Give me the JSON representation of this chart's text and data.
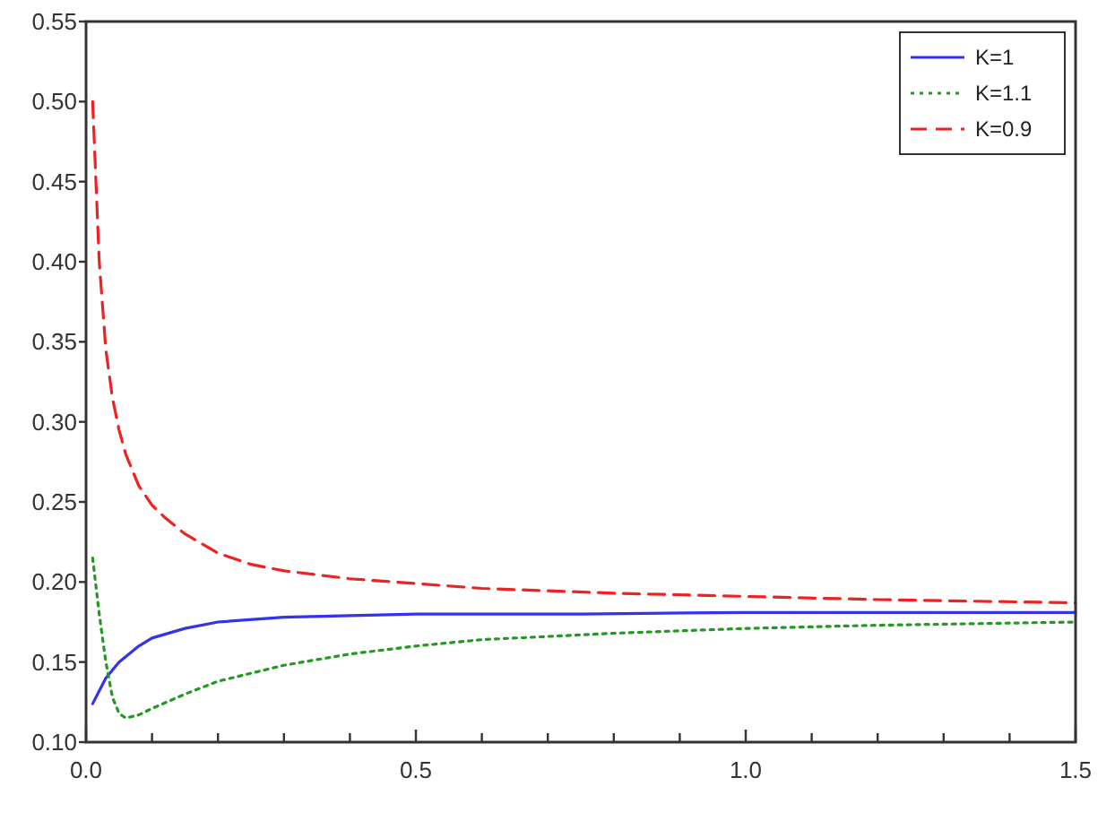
{
  "chart_data": {
    "type": "line",
    "xlim": [
      0,
      1.5
    ],
    "ylim": [
      0.1,
      0.55
    ],
    "xticks": [
      {
        "value": 0,
        "label": "0.0"
      },
      {
        "value": 0.1,
        "label": null
      },
      {
        "value": 0.2,
        "label": null
      },
      {
        "value": 0.3,
        "label": null
      },
      {
        "value": 0.4,
        "label": null
      },
      0.5,
      {
        "value": 0.6,
        "label": null
      },
      {
        "value": 0.7,
        "label": null
      },
      {
        "value": 0.8,
        "label": null
      },
      {
        "value": 0.9,
        "label": null
      },
      {
        "value": 1,
        "label": "1.0"
      },
      {
        "value": 1.1,
        "label": null
      },
      {
        "value": 1.2,
        "label": null
      },
      {
        "value": 1.3,
        "label": null
      },
      {
        "value": 1.4,
        "label": null
      },
      1.5
    ],
    "yticks": [
      {
        "value": 0.1,
        "label": "0.10"
      },
      0.15,
      {
        "value": 0.2,
        "label": "0.20"
      },
      0.25,
      {
        "value": 0.3,
        "label": "0.30"
      },
      0.35,
      {
        "value": 0.4,
        "label": "0.40"
      },
      0.45,
      {
        "value": 0.5,
        "label": "0.50"
      },
      0.55
    ],
    "grid": false,
    "legend": "top right",
    "marker": "none",
    "series": [
      {
        "name": "K=1",
        "color": "#3333ee",
        "line_style": "solid",
        "x": [
          0.01,
          0.02,
          0.03,
          0.05,
          0.08,
          0.1,
          0.15,
          0.2,
          0.3,
          0.4,
          0.5,
          0.75,
          1.0,
          1.5
        ],
        "values": [
          0.124,
          0.132,
          0.14,
          0.15,
          0.16,
          0.165,
          0.171,
          0.175,
          0.178,
          0.179,
          0.18,
          0.18,
          0.181,
          0.181
        ]
      },
      {
        "name": "K=1.1",
        "color": "#229922",
        "line_style": "dotted",
        "x": [
          0.01,
          0.02,
          0.03,
          0.04,
          0.05,
          0.06,
          0.08,
          0.1,
          0.15,
          0.2,
          0.3,
          0.4,
          0.5,
          0.6,
          0.8,
          1.0,
          1.2,
          1.5
        ],
        "values": [
          0.215,
          0.18,
          0.15,
          0.128,
          0.118,
          0.115,
          0.117,
          0.121,
          0.13,
          0.138,
          0.148,
          0.155,
          0.16,
          0.164,
          0.168,
          0.171,
          0.173,
          0.175
        ]
      },
      {
        "name": "K=0.9",
        "color": "#ee2222",
        "line_style": "dashed",
        "x": [
          0.01,
          0.015,
          0.02,
          0.03,
          0.04,
          0.05,
          0.06,
          0.08,
          0.1,
          0.12,
          0.15,
          0.2,
          0.25,
          0.3,
          0.4,
          0.5,
          0.6,
          0.8,
          1.0,
          1.2,
          1.5
        ],
        "values": [
          0.5,
          0.45,
          0.4,
          0.345,
          0.315,
          0.295,
          0.28,
          0.26,
          0.248,
          0.24,
          0.23,
          0.218,
          0.211,
          0.207,
          0.202,
          0.199,
          0.196,
          0.193,
          0.191,
          0.189,
          0.187
        ]
      }
    ]
  }
}
